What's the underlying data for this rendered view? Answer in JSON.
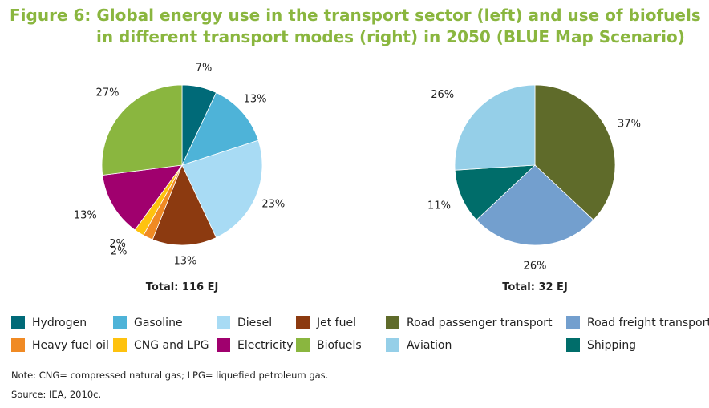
{
  "title": {
    "line1": "Figure 6: Global energy use in the transport sector (left) and use of biofuels",
    "line2": "in different transport modes (right) in 2050 (BLUE Map Scenario)"
  },
  "chart_data": [
    {
      "type": "pie",
      "total_label": "Total: 116 EJ",
      "slices": [
        {
          "label": "Hydrogen",
          "value": 7,
          "text": "7%",
          "color": "#006a78"
        },
        {
          "label": "Gasoline",
          "value": 13,
          "text": "13%",
          "color": "#4eb3d8"
        },
        {
          "label": "Diesel",
          "value": 23,
          "text": "23%",
          "color": "#a8dbf4"
        },
        {
          "label": "Jet fuel",
          "value": 13,
          "text": "13%",
          "color": "#8c3a10"
        },
        {
          "label": "Heavy fuel oil",
          "value": 2,
          "text": "2%",
          "color": "#f08a24"
        },
        {
          "label": "CNG and LPG",
          "value": 2,
          "text": "2%",
          "color": "#fec20e"
        },
        {
          "label": "Electricity",
          "value": 13,
          "text": "13%",
          "color": "#a0006e"
        },
        {
          "label": "Biofuels",
          "value": 27,
          "text": "27%",
          "color": "#8ab63f"
        }
      ]
    },
    {
      "type": "pie",
      "total_label": "Total: 32 EJ",
      "slices": [
        {
          "label": "Road passenger transport",
          "value": 37,
          "text": "37%",
          "color": "#5f6b2a"
        },
        {
          "label": "Road freight transport",
          "value": 26,
          "text": "26%",
          "color": "#739fce"
        },
        {
          "label": "Shipping",
          "value": 11,
          "text": "11%",
          "color": "#006d6a"
        },
        {
          "label": "Aviation",
          "value": 26,
          "text": "26%",
          "color": "#95cfe8"
        }
      ]
    }
  ],
  "legend": [
    {
      "label": "Hydrogen",
      "color": "#006a78"
    },
    {
      "label": "Gasoline",
      "color": "#4eb3d8"
    },
    {
      "label": "Diesel",
      "color": "#a8dbf4"
    },
    {
      "label": "Jet fuel",
      "color": "#8c3a10"
    },
    {
      "label": "Road passenger transport",
      "color": "#5f6b2a"
    },
    {
      "label": "Road freight transport",
      "color": "#739fce"
    },
    {
      "label": "Heavy fuel oil",
      "color": "#f08a24"
    },
    {
      "label": "CNG and LPG",
      "color": "#fec20e"
    },
    {
      "label": "Electricity",
      "color": "#a0006e"
    },
    {
      "label": "Biofuels",
      "color": "#8ab63f"
    },
    {
      "label": "Aviation",
      "color": "#95cfe8"
    },
    {
      "label": "Shipping",
      "color": "#006d6a"
    }
  ],
  "note": "Note: CNG= compressed natural gas; LPG= liquefied petroleum gas.",
  "source": "Source: IEA, 2010c."
}
